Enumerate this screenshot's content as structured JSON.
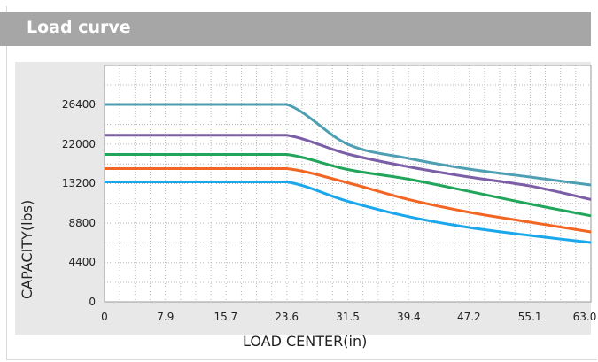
{
  "header": {
    "title": "Load curve"
  },
  "chart_data": {
    "type": "line",
    "xlabel": "LOAD CENTER(in)",
    "ylabel": "CAPACITY(lbs)",
    "x_ticks": [
      "0",
      "7.9",
      "15.7",
      "23.6",
      "31.5",
      "39.4",
      "47.2",
      "55.1",
      "63.0"
    ],
    "y_ticks": [
      "0",
      "4400",
      "8800",
      "13200",
      "22000",
      "26400"
    ],
    "grid": true,
    "legend": "none",
    "x": [
      0,
      7.9,
      15.7,
      23.6,
      31.5,
      39.4,
      47.2,
      55.1,
      63.0
    ],
    "series": [
      {
        "color": "#4f9fb4",
        "values": [
          26400,
          26400,
          26400,
          26400,
          22000,
          18800,
          16400,
          14600,
          13000
        ]
      },
      {
        "color": "#7b5ea7",
        "values": [
          23000,
          23000,
          23000,
          23000,
          19800,
          16900,
          14600,
          12900,
          11400
        ]
      },
      {
        "color": "#21a55a",
        "values": [
          19700,
          19700,
          19700,
          19700,
          16300,
          14100,
          12300,
          10900,
          9600
        ]
      },
      {
        "color": "#f26522",
        "values": [
          16500,
          16500,
          16500,
          16500,
          13300,
          11400,
          10000,
          8900,
          7800
        ]
      },
      {
        "color": "#1aa7ec",
        "values": [
          13500,
          13500,
          13500,
          13500,
          11200,
          9500,
          8300,
          7400,
          6600
        ]
      }
    ]
  }
}
